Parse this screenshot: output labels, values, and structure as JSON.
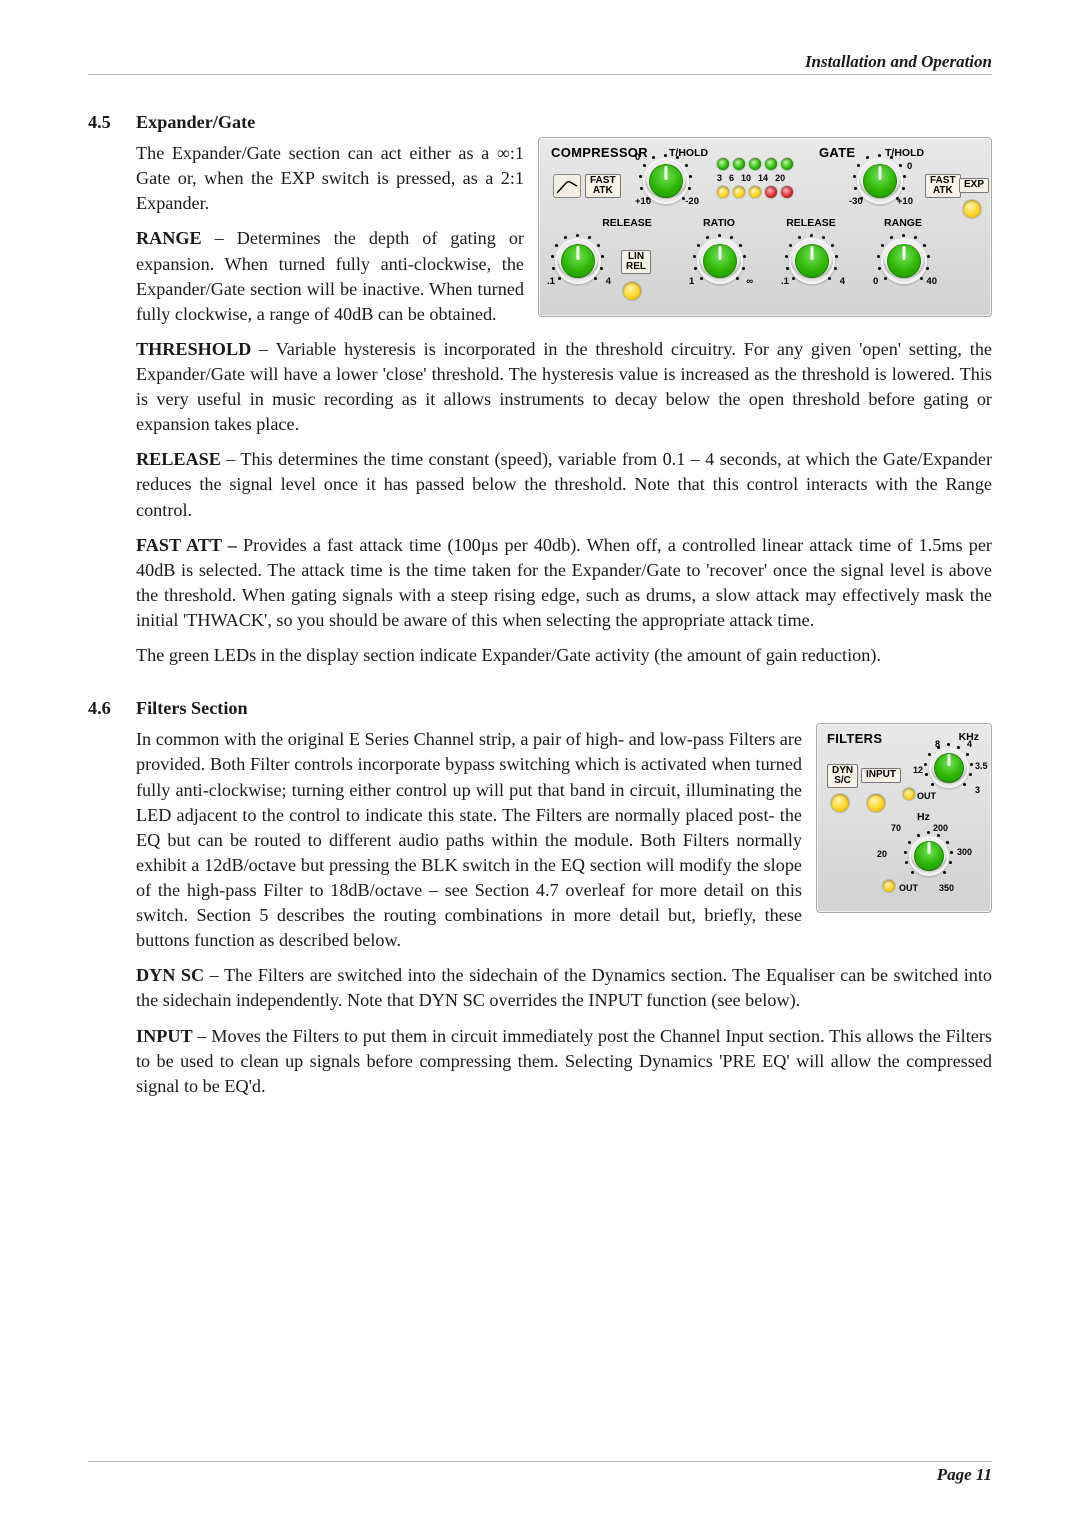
{
  "page": {
    "running_head": "Installation and Operation",
    "page_number_label": "Page 11"
  },
  "sections": {
    "s45": {
      "num": "4.5",
      "title": "Expander/Gate",
      "intro": "The Expander/Gate section can act either as a ∞:1 Gate or, when the EXP switch is pressed, as a 2:1 Expander.",
      "range_lead": "RANGE",
      "range": " – Determines the depth of gating or expansion. When turned fully anti-clockwise, the Expander/Gate section will be inactive. When turned fully clockwise, a range of 40dB can be obtained.",
      "threshold_lead": "THRESHOLD",
      "threshold": " – Variable hysteresis is incorporated in the threshold circuitry. For any given 'open' setting, the Expander/Gate will have a lower 'close' threshold. The hysteresis value is increased as the threshold is lowered. This is very useful in music recording as it allows instruments to decay below the open threshold before gating or expansion takes place.",
      "release_lead": "RELEASE",
      "release": " – This determines the time constant (speed), variable from 0.1 – 4 seconds, at which the Gate/Expander reduces the signal level once it has passed below the threshold. Note that this control interacts with the Range control.",
      "fastatt_lead": "FAST ATT –",
      "fastatt": " Provides a fast attack time (100µs per 40db). When off, a controlled linear attack time of 1.5ms per 40dB is selected. The attack time is the time taken for the Expander/Gate to 'recover' once the signal level is above the threshold. When gating signals with a steep rising edge, such as drums, a slow attack may effectively mask the initial 'THWACK', so you should be aware of this when selecting the appropriate attack time.",
      "tail": "The green LEDs in the display section indicate Expander/Gate activity (the amount of gain reduction)."
    },
    "s46": {
      "num": "4.6",
      "title": "Filters Section",
      "intro": "In common with the original E Series Channel strip, a pair of high- and low-pass Filters are provided. Both Filter controls incorporate bypass switching which is activated when turned fully anti-clockwise; turning either control up will put that band in circuit, illuminating the LED adjacent to the control to indicate this state. The Filters are normally placed post- the EQ but can be routed to different audio paths within the module. Both Filters normally exhibit a 12dB/octave but pressing the BLK switch in the EQ section will modify the slope of the high-pass Filter to 18dB/octave – see Section 4.7 overleaf for more detail on this switch. Section 5 describes the routing combinations in more detail but, briefly, these buttons function as described below.",
      "dynsc_lead": "DYN SC",
      "dynsc": " – The Filters are switched into the sidechain of the Dynamics section. The Equaliser can be switched into the sidechain independently. Note that DYN SC overrides the INPUT function (see below).",
      "input_lead": "INPUT",
      "input": " – Moves the Filters to put them in circuit immediately post the Channel Input section. This allows the Filters to be used to clean up signals before compressing them. Selecting Dynamics 'PRE EQ' will allow the compressed signal to be EQ'd."
    }
  },
  "dyn_panel": {
    "title_left": "COMPRESSOR",
    "title_right": "GATE",
    "thold": "T/HOLD",
    "release": "RELEASE",
    "ratio": "RATIO",
    "range": "RANGE",
    "fast_atk_l1": "FAST",
    "fast_atk_l2": "ATK",
    "exp": "EXP",
    "lin_l1": "LIN",
    "lin_l2": "REL",
    "meter_labels": [
      "3",
      "6",
      "10",
      "14",
      "20"
    ],
    "comp_thold_lo": "+10",
    "comp_thold_hi": "-20",
    "comp_thold_zero": "0",
    "gate_thold_lo": "-30",
    "gate_thold_hi": "+10",
    "gate_thold_zero": "0",
    "rel_lo": ".1",
    "rel_hi": "4",
    "ratio_lo": "1",
    "ratio_hi": "∞",
    "gate_rel_lo": ".1",
    "gate_rel_hi": "4",
    "range_lo": "0",
    "range_hi": "40"
  },
  "filters_panel": {
    "title": "FILTERS",
    "khz": "KHz",
    "hz": "Hz",
    "dynsc_l1": "DYN",
    "dynsc_l2": "S/C",
    "input": "INPUT",
    "out": "OUT",
    "hf": {
      "ticks": [
        "8",
        "4",
        "3.5",
        "3"
      ],
      "t12": "12"
    },
    "lf": {
      "ticks": [
        "70",
        "200",
        "300",
        "350"
      ],
      "t20": "20"
    }
  },
  "colors": {
    "knob_green": "#2cb400",
    "led_green": "#2cb400",
    "led_red": "#d42a2a",
    "led_yellow": "#ffd84a",
    "panel_bg": "#d6d6d6"
  }
}
